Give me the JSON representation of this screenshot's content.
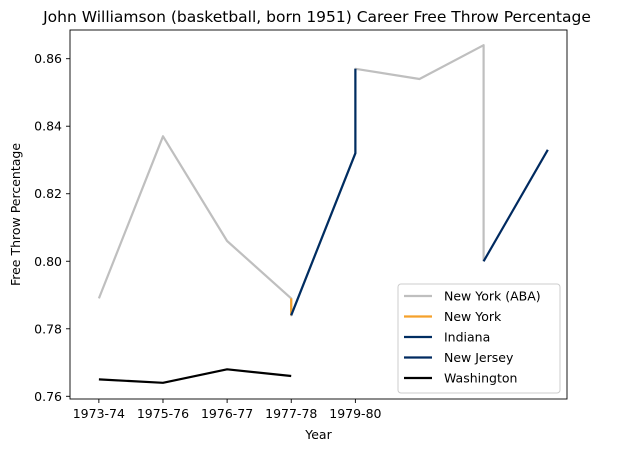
{
  "chart_data": {
    "type": "line",
    "title": "John Williamson (basketball, born 1951) Career Free Throw Percentage",
    "xlabel": "Year",
    "ylabel": "Free Throw Percentage",
    "xlim": [
      -0.45,
      7.3
    ],
    "ylim": [
      0.7592,
      0.8685
    ],
    "x_ticks": [
      {
        "pos": 0,
        "label": "1973-74"
      },
      {
        "pos": 1,
        "label": "1975-76"
      },
      {
        "pos": 2,
        "label": "1976-77"
      },
      {
        "pos": 3,
        "label": "1977-78"
      },
      {
        "pos": 4,
        "label": "1979-80"
      }
    ],
    "y_ticks": [
      0.76,
      0.78,
      0.8,
      0.82,
      0.84,
      0.86
    ],
    "grid": false,
    "legend_position": "lower-right",
    "series": [
      {
        "name": "New York (ABA)",
        "color": "#bfbfbf",
        "points": [
          [
            0,
            0.789
          ],
          [
            1,
            0.837
          ],
          [
            2,
            0.806
          ],
          [
            3,
            0.789
          ],
          [
            3,
            0.784
          ],
          [
            4,
            0.832
          ],
          [
            4,
            0.857
          ],
          [
            5,
            0.854
          ],
          [
            6,
            0.864
          ],
          [
            6,
            0.8
          ]
        ]
      },
      {
        "name": "New York",
        "color": "#f5a12b",
        "points": [
          [
            3,
            0.789
          ],
          [
            3,
            0.784
          ]
        ]
      },
      {
        "name": "Indiana",
        "color": "#002d62",
        "points": [
          [
            3,
            0.784
          ],
          [
            4,
            0.832
          ],
          [
            4,
            0.857
          ]
        ]
      },
      {
        "name": "New Jersey",
        "color": "#002a60",
        "points": [
          [
            6,
            0.8
          ],
          [
            7,
            0.833
          ]
        ]
      },
      {
        "name": "Washington",
        "color": "#000000",
        "points": [
          [
            0,
            0.765
          ],
          [
            1,
            0.764
          ],
          [
            2,
            0.768
          ],
          [
            3,
            0.766
          ]
        ]
      }
    ]
  }
}
